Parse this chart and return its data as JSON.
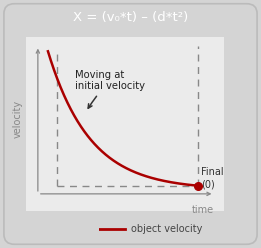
{
  "title": "X = (v₀*t) – (d*t²)",
  "title_bg": "#5c5c5c",
  "title_color": "#ffffff",
  "bg_color": "#d4d4d4",
  "plot_bg": "#ebebeb",
  "curve_color": "#aa0000",
  "dashed_color": "#888888",
  "axis_color": "#888888",
  "annotation_text": "Moving at\ninitial velocity",
  "final_label": "Final\n(0)",
  "xlabel": "time",
  "ylabel": "velocity",
  "legend_label": "object velocity",
  "dot_color": "#aa0000",
  "border_color": "#bbbbbb",
  "arrow_color": "#333333"
}
